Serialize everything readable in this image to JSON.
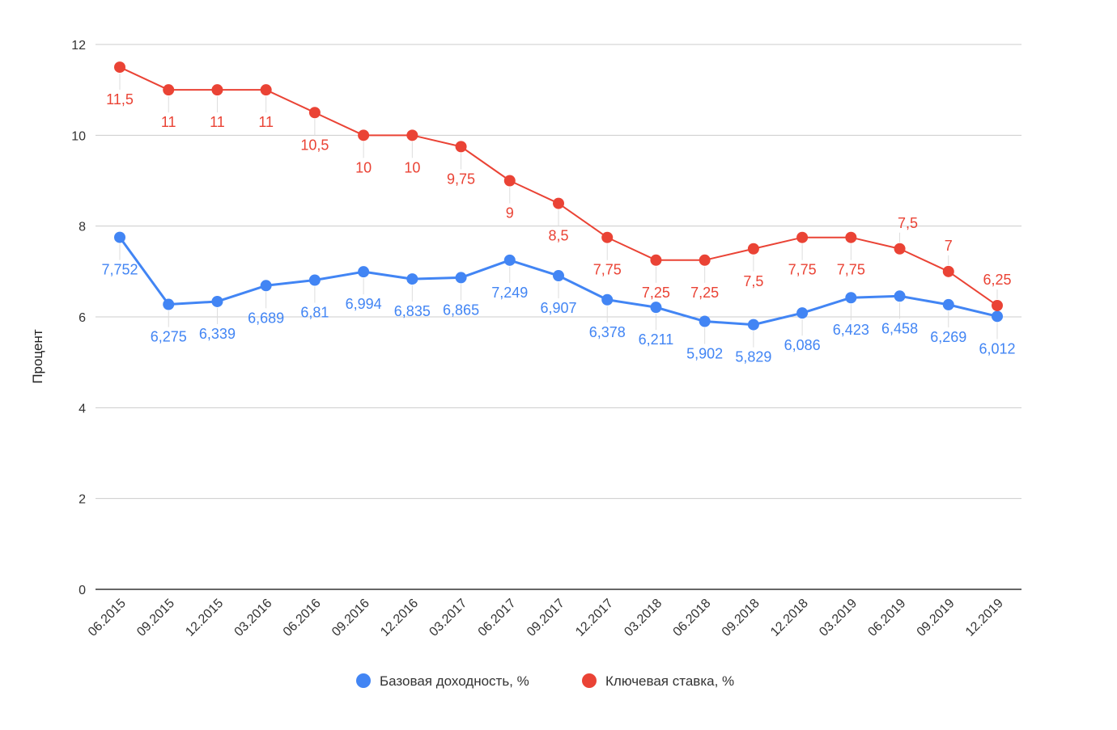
{
  "chart_data": {
    "type": "line",
    "title": "",
    "xlabel": "",
    "ylabel": "Процент",
    "ylim": [
      0,
      12
    ],
    "yticks": [
      0,
      2,
      4,
      6,
      8,
      10,
      12
    ],
    "grid": true,
    "legend_position": "bottom",
    "categories": [
      "06.2015",
      "09.2015",
      "12.2015",
      "03.2016",
      "06.2016",
      "09.2016",
      "12.2016",
      "03.2017",
      "06.2017",
      "09.2017",
      "12.2017",
      "03.2018",
      "06.2018",
      "09.2018",
      "12.2018",
      "03.2019",
      "06.2019",
      "09.2019",
      "12.2019"
    ],
    "series": [
      {
        "name": "Базовая доходность, %",
        "color": "#4285f4",
        "values": [
          7.752,
          6.275,
          6.339,
          6.689,
          6.81,
          6.994,
          6.835,
          6.865,
          7.249,
          6.907,
          6.378,
          6.211,
          5.902,
          5.829,
          6.086,
          6.423,
          6.458,
          6.269,
          6.012
        ],
        "labels": [
          "7,752",
          "6,275",
          "6,339",
          "6,689",
          "6,81",
          "6,994",
          "6,835",
          "6,865",
          "7,249",
          "6,907",
          "6,378",
          "6,211",
          "5,902",
          "5,829",
          "6,086",
          "6,423",
          "6,458",
          "6,269",
          "6,012"
        ]
      },
      {
        "name": "Ключевая ставка, %",
        "color": "#ea4335",
        "values": [
          11.5,
          11,
          11,
          11,
          10.5,
          10,
          10,
          9.75,
          9,
          8.5,
          7.75,
          7.25,
          7.25,
          7.5,
          7.75,
          7.75,
          7.5,
          7,
          6.25
        ],
        "labels": [
          "11,5",
          "11",
          "11",
          "11",
          "10,5",
          "10",
          "10",
          "9,75",
          "9",
          "8,5",
          "7,75",
          "7,25",
          "7,25",
          "7,5",
          "7,75",
          "7,75",
          "7,5",
          "7",
          "6,25"
        ]
      }
    ]
  }
}
